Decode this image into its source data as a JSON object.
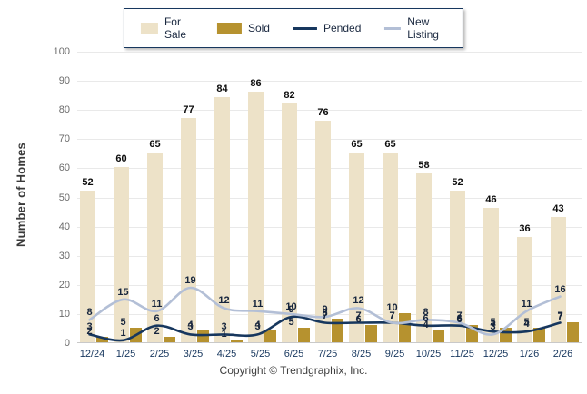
{
  "legend": {
    "items": [
      {
        "label": "For Sale",
        "type": "bar",
        "color": "#EDE2C8"
      },
      {
        "label": "Sold",
        "type": "bar",
        "color": "#B6922F"
      },
      {
        "label": "Pended",
        "type": "line",
        "color": "#17375E"
      },
      {
        "label": "New Listing",
        "type": "line",
        "color": "#B3BFD6"
      }
    ]
  },
  "y_axis": {
    "title": "Number of Homes",
    "min": 0,
    "max": 100,
    "step": 10
  },
  "footer": {
    "copyright": "Copyright © Trendgraphix, Inc."
  },
  "chart_data": {
    "type": "bar",
    "subtype": "grouped bars with overlaid lines",
    "categories": [
      "12/24",
      "1/25",
      "2/25",
      "3/25",
      "4/25",
      "5/25",
      "6/25",
      "7/25",
      "8/25",
      "9/25",
      "10/25",
      "11/25",
      "12/25",
      "1/26",
      "2/26"
    ],
    "series": [
      {
        "name": "For Sale",
        "type": "bar",
        "color": "#EDE2C8",
        "values": [
          52,
          60,
          65,
          77,
          84,
          86,
          82,
          76,
          65,
          65,
          58,
          52,
          46,
          36,
          43
        ]
      },
      {
        "name": "Sold",
        "type": "bar",
        "color": "#B6922F",
        "values": [
          2,
          5,
          2,
          4,
          1,
          4,
          5,
          8,
          6,
          10,
          4,
          6,
          5,
          5,
          7
        ]
      },
      {
        "name": "Pended",
        "type": "line",
        "color": "#17375E",
        "values": [
          3,
          1,
          6,
          3,
          3,
          3,
          9,
          7,
          7,
          7,
          6,
          6,
          4,
          4,
          7
        ]
      },
      {
        "name": "New Listing",
        "type": "line",
        "color": "#B3BFD6",
        "values": [
          8,
          15,
          11,
          19,
          12,
          11,
          10,
          9,
          12,
          7,
          8,
          7,
          3,
          11,
          16
        ]
      }
    ],
    "title": "",
    "xlabel": "",
    "ylabel": "Number of Homes",
    "ylim": [
      0,
      100
    ],
    "grid": true,
    "legend_position": "top",
    "data_labels": true
  }
}
